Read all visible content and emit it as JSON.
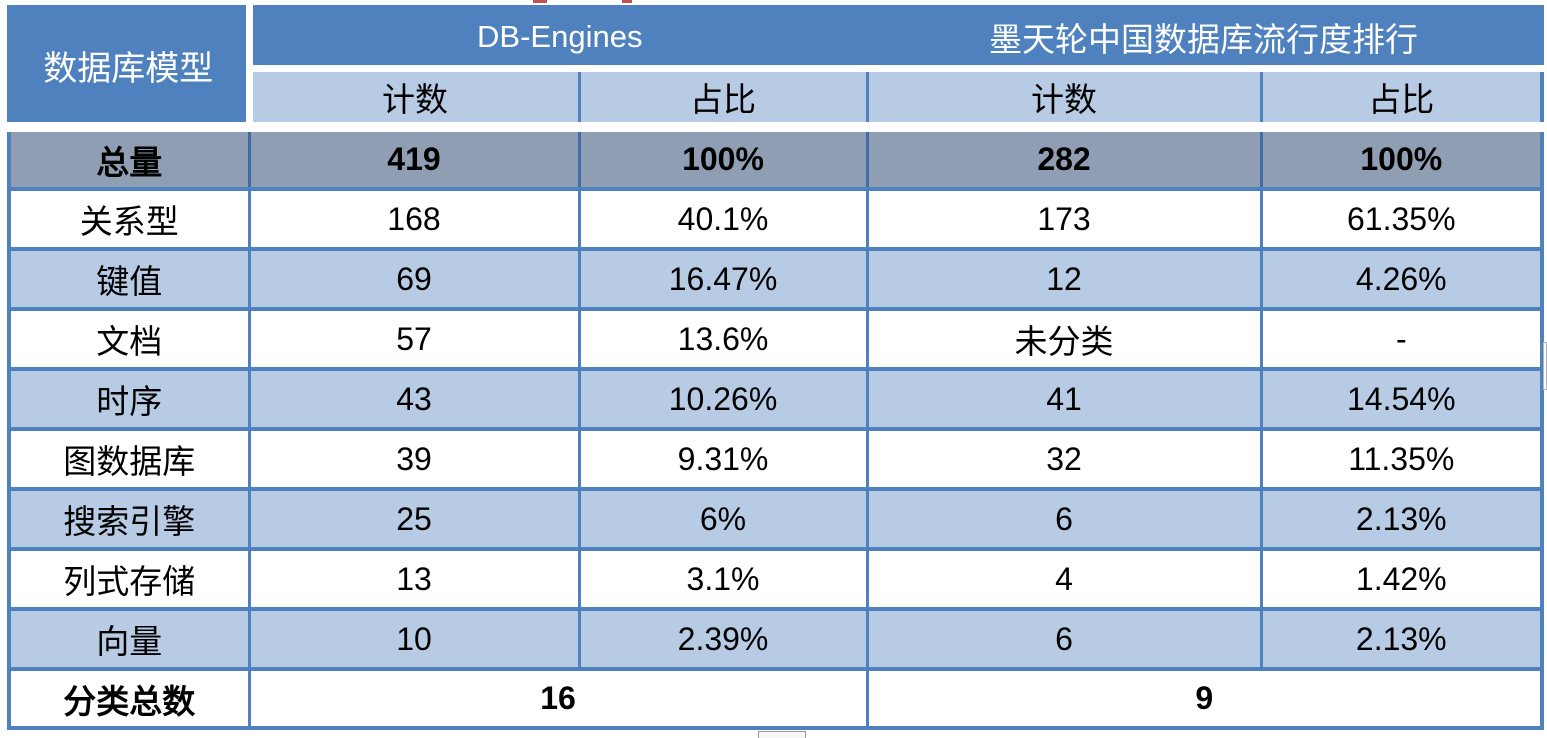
{
  "colors": {
    "header_blue": "#4E81BE",
    "sub_header_light_blue": "#B7CBE4",
    "band_row_light_blue": "#B7CBE4",
    "total_row_gray_blue": "#8F9EB3",
    "grid_border_blue": "#4E81BE",
    "total_row_divider": "#3F6CA6",
    "header_text": "#FFFFFF",
    "body_text": "#000000",
    "cropped_red_fragment": "#C1504E"
  },
  "table": {
    "corner_header": "数据库模型",
    "groups": [
      {
        "label": "DB-Engines",
        "cols": [
          "计数",
          "占比"
        ]
      },
      {
        "label": "墨天轮中国数据库流行度排行",
        "cols": [
          "计数",
          "占比"
        ]
      }
    ],
    "total_row": {
      "label": "总量",
      "values": [
        "419",
        "100%",
        "282",
        "100%"
      ]
    },
    "rows": [
      {
        "label": "关系型",
        "values": [
          "168",
          "40.1%",
          "173",
          "61.35%"
        ]
      },
      {
        "label": "键值",
        "values": [
          "69",
          "16.47%",
          "12",
          "4.26%"
        ]
      },
      {
        "label": "文档",
        "values": [
          "57",
          "13.6%",
          "未分类",
          "-"
        ]
      },
      {
        "label": "时序",
        "values": [
          "43",
          "10.26%",
          "41",
          "14.54%"
        ]
      },
      {
        "label": "图数据库",
        "values": [
          "39",
          "9.31%",
          "32",
          "11.35%"
        ]
      },
      {
        "label": "搜索引擎",
        "values": [
          "25",
          "6%",
          "6",
          "2.13%"
        ]
      },
      {
        "label": "列式存储",
        "values": [
          "13",
          "3.1%",
          "4",
          "1.42%"
        ]
      },
      {
        "label": "向量",
        "values": [
          "10",
          "2.39%",
          "6",
          "2.13%"
        ]
      }
    ],
    "summary_row": {
      "label": "分类总数",
      "values": [
        "16",
        "9"
      ]
    }
  },
  "chart_data": {
    "type": "table",
    "title": "",
    "column_groups": [
      "数据库模型",
      "DB-Engines",
      "墨天轮中国数据库流行度排行"
    ],
    "columns": [
      "数据库模型",
      "计数",
      "占比",
      "计数",
      "占比"
    ],
    "rows": [
      [
        "总量",
        "419",
        "100%",
        "282",
        "100%"
      ],
      [
        "关系型",
        "168",
        "40.1%",
        "173",
        "61.35%"
      ],
      [
        "键值",
        "69",
        "16.47%",
        "12",
        "4.26%"
      ],
      [
        "文档",
        "57",
        "13.6%",
        "未分类",
        "-"
      ],
      [
        "时序",
        "43",
        "10.26%",
        "41",
        "14.54%"
      ],
      [
        "图数据库",
        "39",
        "9.31%",
        "32",
        "11.35%"
      ],
      [
        "搜索引擎",
        "25",
        "6%",
        "6",
        "2.13%"
      ],
      [
        "列式存储",
        "13",
        "3.1%",
        "4",
        "1.42%"
      ],
      [
        "向量",
        "10",
        "2.39%",
        "6",
        "2.13%"
      ],
      [
        "分类总数",
        "16",
        "",
        "9",
        ""
      ]
    ]
  }
}
